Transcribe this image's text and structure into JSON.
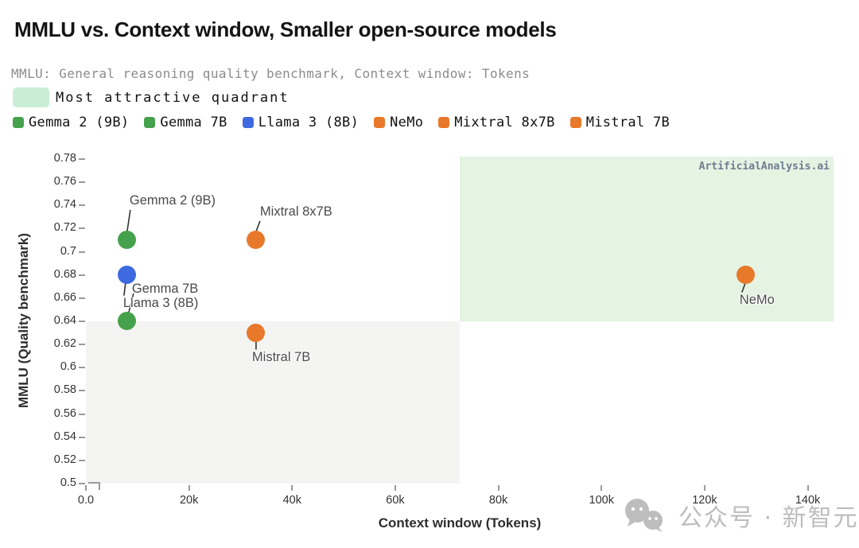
{
  "header": {
    "title": "MMLU vs. Context window, Smaller open-source models",
    "subtitle": "MMLU: General reasoning quality benchmark, Context window: Tokens"
  },
  "quadrant_legend": {
    "label": "Most attractive quadrant",
    "swatch_color": "#c8efd5"
  },
  "series_legend": [
    {
      "label": "Gemma 2 (9B)",
      "color": "#46a14d"
    },
    {
      "label": "Gemma 7B",
      "color": "#46a14d"
    },
    {
      "label": "Llama 3 (8B)",
      "color": "#3d6ae0"
    },
    {
      "label": "NeMo",
      "color": "#e8782a"
    },
    {
      "label": "Mixtral 8x7B",
      "color": "#e8782a"
    },
    {
      "label": "Mistral 7B",
      "color": "#e8782a"
    }
  ],
  "watermark": "ArtificialAnalysis.ai",
  "bottom_watermark": {
    "text": "公众号 · 新智元"
  },
  "colors": {
    "green": "#46a14d",
    "blue": "#3d6ae0",
    "orange": "#e8782a",
    "attractive_quadrant_bg": "#e5f3e3",
    "lower_quadrant_bg": "#f4f4f3",
    "leader_line": "#333333"
  },
  "chart_data": {
    "type": "scatter",
    "title": "MMLU vs. Context window, Smaller open-source models",
    "xlabel": "Context window (Tokens)",
    "ylabel": "MMLU (Quality benchmark)",
    "xlim": [
      0,
      145000
    ],
    "ylim": [
      0.5,
      0.782
    ],
    "grid": false,
    "x_ticks": [
      {
        "v": 0,
        "label": "0.0"
      },
      {
        "v": 20000,
        "label": "20k"
      },
      {
        "v": 40000,
        "label": "40k"
      },
      {
        "v": 60000,
        "label": "60k"
      },
      {
        "v": 80000,
        "label": "80k"
      },
      {
        "v": 100000,
        "label": "100k"
      },
      {
        "v": 120000,
        "label": "120k"
      },
      {
        "v": 140000,
        "label": "140k"
      }
    ],
    "y_ticks": [
      {
        "v": 0.78,
        "label": "0.78"
      },
      {
        "v": 0.76,
        "label": "0.76"
      },
      {
        "v": 0.74,
        "label": "0.74"
      },
      {
        "v": 0.72,
        "label": "0.72"
      },
      {
        "v": 0.7,
        "label": "0.7"
      },
      {
        "v": 0.68,
        "label": "0.68"
      },
      {
        "v": 0.66,
        "label": "0.66"
      },
      {
        "v": 0.64,
        "label": "0.64"
      },
      {
        "v": 0.62,
        "label": "0.62"
      },
      {
        "v": 0.6,
        "label": "0.6"
      },
      {
        "v": 0.58,
        "label": "0.58"
      },
      {
        "v": 0.56,
        "label": "0.56"
      },
      {
        "v": 0.54,
        "label": "0.54"
      },
      {
        "v": 0.52,
        "label": "0.52"
      },
      {
        "v": 0.5,
        "label": "0.5"
      }
    ],
    "quadrants": {
      "attractive": {
        "x": [
          72500,
          145000
        ],
        "y": [
          0.64,
          0.782
        ],
        "color": "#e5f3e3",
        "label": "Most attractive quadrant"
      },
      "lower_left": {
        "x": [
          0,
          72500
        ],
        "y": [
          0.5,
          0.64
        ],
        "color": "#f4f4f3"
      }
    },
    "points": [
      {
        "name": "Gemma 2 (9B)",
        "x": 8000,
        "y": 0.71,
        "color": "#46a14d",
        "label_offset": [
          3,
          -59
        ],
        "leader": [
          0,
          -11,
          4,
          -38
        ]
      },
      {
        "name": "Llama 3 (8B)",
        "x": 8000,
        "y": 0.68,
        "color": "#3d6ae0",
        "label_offset": [
          -5,
          26
        ],
        "leader": [
          -2,
          10,
          -4,
          26
        ]
      },
      {
        "name": "Gemma 7B",
        "x": 8000,
        "y": 0.64,
        "color": "#46a14d",
        "label_offset": [
          6,
          -50
        ],
        "leader": [
          2,
          -11,
          8,
          -35
        ]
      },
      {
        "name": "Mixtral 8x7B",
        "x": 33000,
        "y": 0.71,
        "color": "#e8782a",
        "label_offset": [
          5,
          -45
        ],
        "leader": [
          0,
          -11,
          5,
          -24
        ]
      },
      {
        "name": "Mistral 7B",
        "x": 33000,
        "y": 0.63,
        "color": "#e8782a",
        "label_offset": [
          -5,
          21
        ],
        "leader": [
          0,
          11,
          0,
          21
        ]
      },
      {
        "name": "NeMo",
        "x": 128000,
        "y": 0.68,
        "color": "#e8782a",
        "label_offset": [
          -8,
          22
        ],
        "leader": [
          -1,
          11,
          -5,
          22
        ]
      }
    ]
  }
}
